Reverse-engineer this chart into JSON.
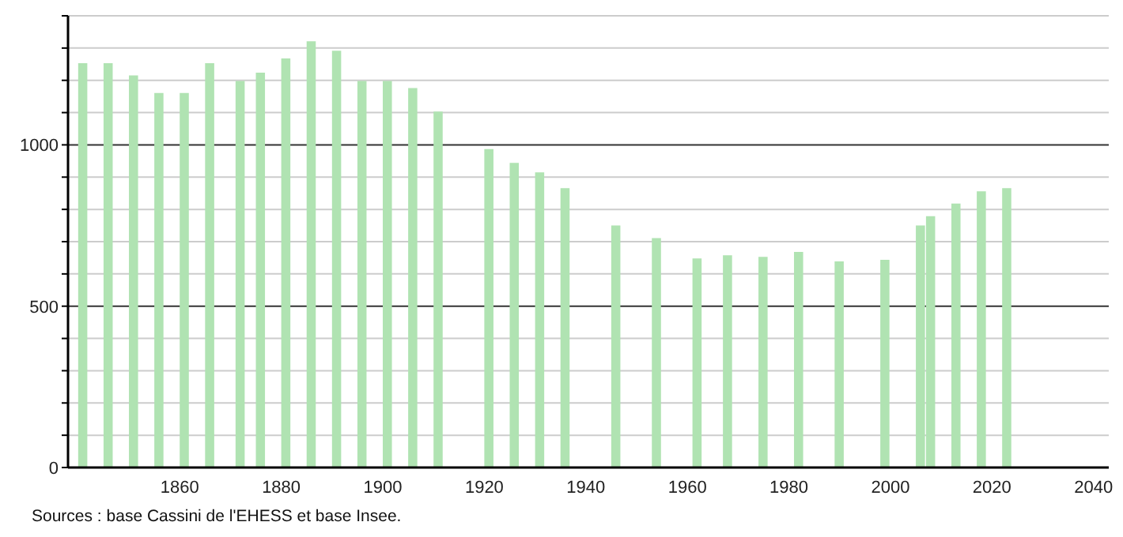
{
  "chart_data": {
    "type": "bar",
    "x": [
      1841,
      1846,
      1851,
      1856,
      1861,
      1866,
      1872,
      1876,
      1881,
      1886,
      1891,
      1896,
      1901,
      1906,
      1911,
      1921,
      1926,
      1931,
      1936,
      1946,
      1954,
      1962,
      1968,
      1975,
      1982,
      1990,
      1999,
      2006,
      2008,
      2013,
      2018,
      2023
    ],
    "values": [
      1253,
      1253,
      1215,
      1161,
      1161,
      1253,
      1198,
      1224,
      1268,
      1321,
      1292,
      1198,
      1198,
      1176,
      1103,
      987,
      944,
      915,
      866,
      750,
      711,
      648,
      658,
      653,
      668,
      639,
      644,
      750,
      779,
      818,
      856,
      866
    ],
    "color": "#b0e3b2",
    "xlim": [
      1838,
      2043
    ],
    "xticks": [
      1860,
      1880,
      1900,
      1920,
      1940,
      1960,
      1980,
      2000,
      2020,
      2040
    ],
    "ylim": [
      0,
      1400
    ],
    "yticks": [
      0,
      {
        "value": 100,
        "label": null
      },
      {
        "value": 200,
        "label": null
      },
      {
        "value": 300,
        "label": null
      },
      {
        "value": 400,
        "label": null
      },
      500,
      {
        "value": 600,
        "label": null
      },
      {
        "value": 700,
        "label": null
      },
      {
        "value": 800,
        "label": null
      },
      {
        "value": 900,
        "label": null
      },
      1000,
      {
        "value": 1100,
        "label": null
      },
      {
        "value": 1200,
        "label": null
      },
      {
        "value": 1300,
        "label": null
      },
      {
        "value": 1400,
        "label": null
      }
    ],
    "grid": "y",
    "annotations": [
      "Sources : base Cassini de l'EHESS et base Insee."
    ]
  }
}
